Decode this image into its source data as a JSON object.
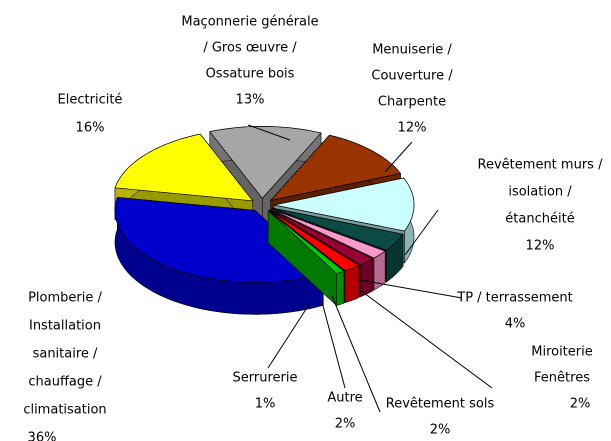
{
  "chart_data": {
    "type": "pie3d",
    "categories": [
      [
        "Maçonnerie générale",
        "/ Gros œuvre /",
        "Ossature bois"
      ],
      [
        "Menuiserie /",
        "Couverture /",
        "Charpente"
      ],
      [
        "Revêtement murs /",
        "isolation /",
        "étanchéité"
      ],
      [
        "TP / terrassement"
      ],
      [
        "Miroiterie",
        "Fenêtres"
      ],
      [
        "Revêtement sols"
      ],
      [
        "Autre"
      ],
      [
        "Serrurerie"
      ],
      [
        "Plomberie /",
        "Installation",
        "sanitaire /",
        "chauffage /",
        "climatisation"
      ],
      [
        "Electricité"
      ]
    ],
    "values": [
      13,
      12,
      12,
      4,
      2,
      2,
      2,
      1,
      36,
      16
    ],
    "value_labels": [
      "13%",
      "12%",
      "12%",
      "4%",
      "2%",
      "2%",
      "2%",
      "1%",
      "36%",
      "16%"
    ],
    "colors": [
      "#a6a6a6",
      "#993300",
      "#ccffff",
      "#0b4a45",
      "#ff99cc",
      "#990033",
      "#ff0000",
      "#00cc00",
      "#0000cc",
      "#ffff00"
    ]
  }
}
